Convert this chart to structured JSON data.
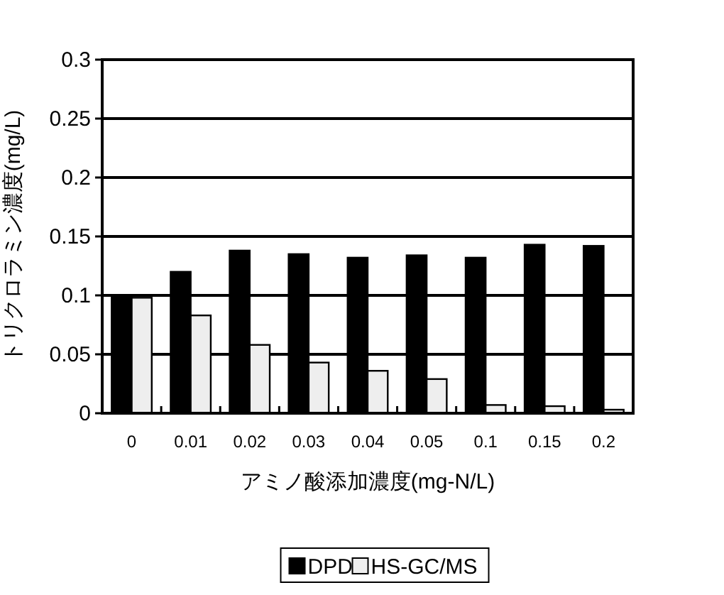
{
  "chart_data": {
    "type": "bar",
    "xlabel": "アミノ酸添加濃度(mg-N/L)",
    "ylabel": "トリクロラミン濃度(mg/L)",
    "categories": [
      "0",
      "0.01",
      "0.02",
      "0.03",
      "0.04",
      "0.05",
      "0.1",
      "0.15",
      "0.2"
    ],
    "series": [
      {
        "name": "DPD",
        "color": "#000000",
        "values": [
          0.1,
          0.12,
          0.138,
          0.135,
          0.132,
          0.134,
          0.132,
          0.143,
          0.142
        ]
      },
      {
        "name": "HS-GC/MS",
        "color": "#eeeeee",
        "values": [
          0.098,
          0.083,
          0.058,
          0.043,
          0.036,
          0.029,
          0.007,
          0.006,
          0.003
        ]
      }
    ],
    "ylim": [
      0,
      0.3
    ],
    "yticks": [
      0,
      0.05,
      0.1,
      0.15,
      0.2,
      0.25,
      0.3
    ],
    "grid": "y",
    "legend": "bottom"
  }
}
